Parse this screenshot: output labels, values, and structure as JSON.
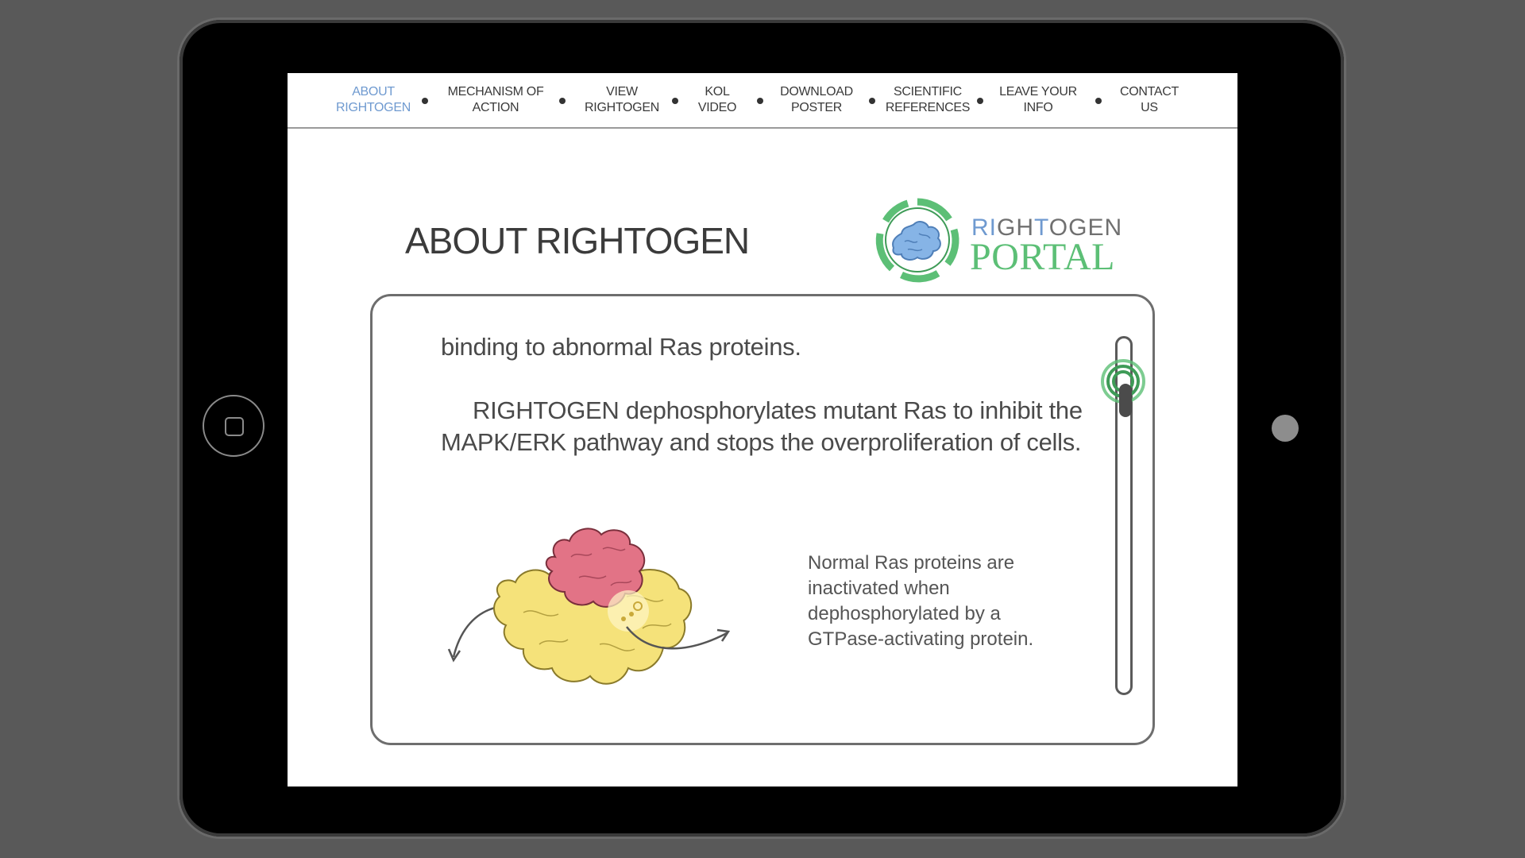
{
  "nav": {
    "items": [
      {
        "line1": "ABOUT",
        "line2": "RIGHTOGEN",
        "active": true
      },
      {
        "line1": "MECHANISM OF",
        "line2": "ACTION",
        "active": false
      },
      {
        "line1": "VIEW",
        "line2": "RIGHTOGEN",
        "active": false
      },
      {
        "line1": "KOL",
        "line2": "VIDEO",
        "active": false
      },
      {
        "line1": "DOWNLOAD",
        "line2": "POSTER",
        "active": false
      },
      {
        "line1": "SCIENTIFIC",
        "line2": "REFERENCES",
        "active": false
      },
      {
        "line1": "LEAVE YOUR",
        "line2": "INFO",
        "active": false
      },
      {
        "line1": "CONTACT",
        "line2": "US",
        "active": false
      }
    ]
  },
  "page": {
    "title": "ABOUT RIGHTOGEN"
  },
  "logo": {
    "top_part1": "RI",
    "top_part2": "GH",
    "top_part3": "T",
    "top_part4": "OGEN",
    "bottom": "PORTAL"
  },
  "content": {
    "para1": "binding to abnormal Ras proteins.",
    "para2": "RIGHTOGEN dephosphorylates mutant Ras to inhibit the MAPK/ERK pathway and stops the overproliferation of cells.",
    "caption": "Normal Ras proteins are inactivated when dephosphorylated by a GTPase-activating protein."
  },
  "scroll": {
    "position_fraction": 0.12
  },
  "colors": {
    "accent_blue": "#6f9ad0",
    "logo_green": "#5cbf76",
    "protein_yellow": "#f5e27a",
    "protein_pink": "#e27386"
  }
}
